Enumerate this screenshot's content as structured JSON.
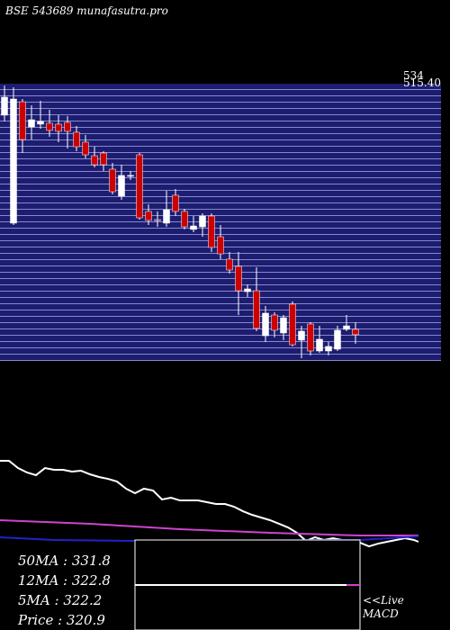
{
  "header": {
    "title": "BSE 543689 munafasutra.pro",
    "price_labels": [
      "534",
      "515.40"
    ]
  },
  "chart_data": [
    {
      "type": "candlestick",
      "ylim": [
        301.5,
        515.4
      ],
      "up_color": "#ffffff",
      "down_color": "#cc0000",
      "open": [
        489.2,
        406.4,
        499.5,
        480.2,
        482.3,
        483.0,
        482.3,
        483.7,
        476.1,
        468.5,
        458.1,
        460.2,
        447.8,
        427.1,
        442.3,
        458.8,
        415.4,
        409.1,
        406.4,
        427.8,
        415.4,
        401.6,
        403.6,
        411.9,
        396.0,
        378.8,
        373.3,
        353.9,
        354.6,
        320.1,
        336.0,
        322.2,
        344.3,
        316.7,
        329.1,
        308.4,
        308.4,
        309.8,
        325.0,
        325.0
      ],
      "high": [
        511.9,
        510.6,
        501.6,
        496.8,
        500.2,
        493.3,
        489.2,
        488.5,
        480.9,
        474.0,
        465.0,
        461.6,
        452.6,
        451.2,
        446.4,
        460.2,
        420.8,
        415.4,
        431.2,
        432.6,
        417.4,
        411.9,
        414.0,
        414.0,
        405.0,
        384.3,
        384.3,
        359.5,
        372.6,
        342.9,
        338.1,
        336.0,
        346.4,
        327.7,
        330.5,
        327.7,
        315.3,
        327.7,
        336.0,
        330.5
      ],
      "low": [
        484.4,
        405.0,
        460.2,
        470.5,
        478.8,
        472.6,
        468.5,
        463.7,
        461.6,
        456.1,
        449.2,
        446.4,
        428.5,
        424.3,
        439.5,
        409.1,
        405.0,
        403.6,
        403.6,
        411.9,
        401.6,
        399.5,
        396.0,
        384.3,
        378.8,
        367.7,
        336.0,
        349.8,
        323.6,
        315.3,
        318.8,
        316.7,
        311.9,
        302.9,
        305.0,
        307.0,
        305.0,
        308.4,
        323.6,
        313.9
      ],
      "close": [
        503.0,
        501.6,
        470.5,
        485.7,
        484.4,
        477.5,
        476.8,
        476.8,
        465.0,
        458.8,
        451.2,
        451.2,
        430.5,
        443.0,
        443.0,
        410.5,
        408.5,
        408.5,
        416.7,
        415.4,
        403.6,
        404.3,
        411.9,
        387.8,
        382.9,
        370.5,
        354.6,
        356.0,
        325.7,
        337.4,
        324.3,
        333.9,
        313.2,
        323.6,
        308.4,
        317.4,
        311.9,
        324.3,
        327.7,
        320.9
      ]
    },
    {
      "type": "line",
      "xlim": [
        0,
        500
      ],
      "ylim": [
        0,
        100
      ],
      "series": [
        {
          "color": "#ffffff",
          "x": [
            0,
            10,
            20,
            30,
            40,
            50,
            60,
            70,
            80,
            90,
            100,
            110,
            120,
            130,
            140,
            150,
            160,
            170,
            180,
            190,
            200,
            210,
            220,
            230,
            240,
            250,
            260,
            270,
            280,
            290,
            300,
            310,
            320,
            330,
            340,
            350,
            360,
            370,
            380,
            390,
            400,
            410,
            420,
            430,
            440,
            450,
            460,
            465
          ],
          "values": [
            90,
            90,
            83.3,
            79.2,
            76.7,
            83.3,
            81.7,
            81.7,
            80,
            80.8,
            77.5,
            75,
            73.3,
            70.8,
            64.2,
            60,
            64.2,
            62.5,
            54.2,
            55.8,
            53.3,
            53.3,
            53.3,
            51.7,
            50,
            50,
            47.5,
            43.3,
            40,
            37.5,
            35,
            31.7,
            28.3,
            23.3,
            15.8,
            19.2,
            16.7,
            18.3,
            16.7,
            16.7,
            14.2,
            10.8,
            13.3,
            15,
            16.7,
            18.3,
            16.7,
            15
          ]
        },
        {
          "color": "#cc44cc",
          "x": [
            0,
            100,
            200,
            300,
            400,
            465
          ],
          "values": [
            35,
            31.7,
            26.7,
            23.3,
            20.8,
            20.8
          ]
        },
        {
          "color": "#2222cc",
          "x": [
            0,
            60,
            150,
            400,
            465
          ],
          "values": [
            19.2,
            16.7,
            15.8,
            16.7,
            20
          ]
        }
      ]
    }
  ],
  "stats": [
    "50MA : 331.8",
    "12MA : 322.8",
    "5MA : 322.2",
    "Price   : 320.9"
  ],
  "live": {
    "link": "<<Live",
    "label": "MACD"
  }
}
